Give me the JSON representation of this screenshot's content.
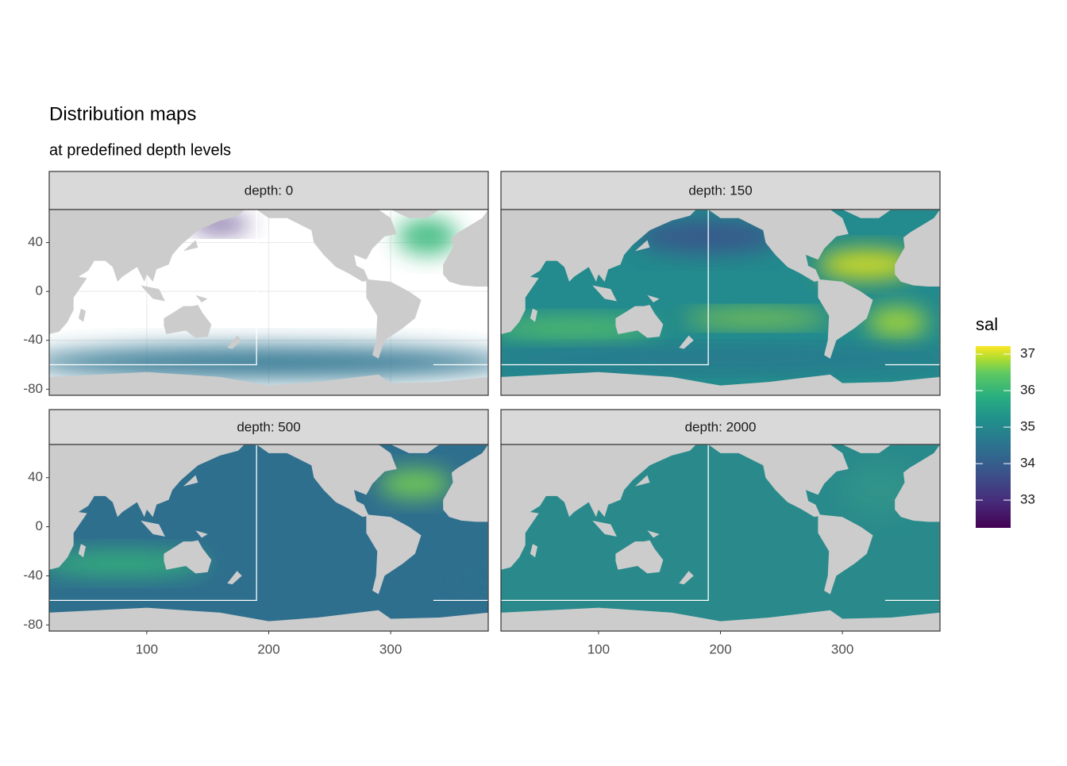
{
  "title": "Distribution maps",
  "subtitle": "at predefined depth levels",
  "chart_data": [
    {
      "type": "map",
      "facet": "depth: 0",
      "xlim": [
        20,
        380
      ],
      "ylim": [
        -85,
        67
      ],
      "xticks": [
        100,
        200,
        300
      ],
      "yticks": [
        -80,
        -40,
        0,
        40
      ]
    },
    {
      "type": "map",
      "facet": "depth: 150",
      "xlim": [
        20,
        380
      ],
      "ylim": [
        -85,
        67
      ],
      "xticks": [
        100,
        200,
        300
      ],
      "yticks": [
        -80,
        -40,
        0,
        40
      ]
    },
    {
      "type": "map",
      "facet": "depth: 500",
      "xlim": [
        20,
        380
      ],
      "ylim": [
        -85,
        67
      ],
      "xticks": [
        100,
        200,
        300
      ],
      "yticks": [
        -80,
        -40,
        0,
        40
      ]
    },
    {
      "type": "map",
      "facet": "depth: 2000",
      "xlim": [
        20,
        380
      ],
      "ylim": [
        -85,
        67
      ],
      "xticks": [
        100,
        200,
        300
      ],
      "yticks": [
        -80,
        -40,
        0,
        40
      ]
    }
  ],
  "legend": {
    "title": "sal",
    "colorscale": "viridis",
    "lim": [
      32.24,
      37.22
    ],
    "ticks": [
      33,
      34,
      35,
      36,
      37
    ]
  }
}
